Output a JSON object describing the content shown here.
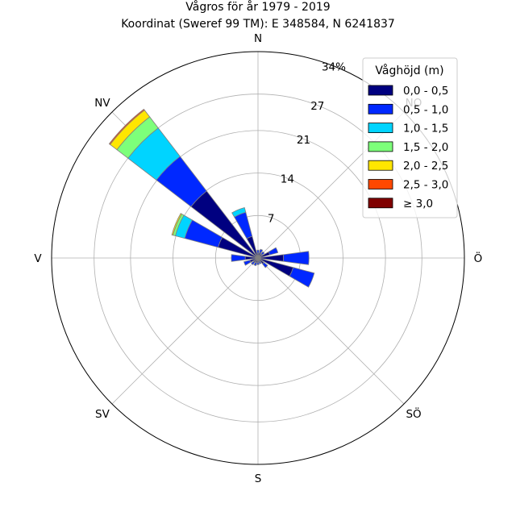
{
  "chart_data": {
    "type": "wind-rose",
    "title": "Vågros för år 1979 - 2019",
    "subtitle": "Koordinat (Sweref 99 TM): E 348584, N 6241837",
    "directions": [
      "N",
      "NO",
      "Ö",
      "SÖ",
      "S",
      "SV",
      "V",
      "NV"
    ],
    "radial_ticks": [
      "7",
      "14",
      "21",
      "27",
      "34%"
    ],
    "radial_tick_values": [
      7,
      14,
      21,
      27,
      34
    ],
    "rmax": 34,
    "grid": true,
    "legend": {
      "title": "Våghöjd (m)",
      "placement": "top-right",
      "items": [
        {
          "label": "0,0 - 0,5",
          "color": "#000080"
        },
        {
          "label": "0,5 - 1,0",
          "color": "#0028ff"
        },
        {
          "label": "1,0 - 1,5",
          "color": "#00d4ff"
        },
        {
          "label": "1,5 - 2,0",
          "color": "#7dff7a"
        },
        {
          "label": "2,0 - 2,5",
          "color": "#ffe600"
        },
        {
          "label": "2,5 - 3,0",
          "color": "#ff4800"
        },
        {
          "label": "≥ 3,0",
          "color": "#800000"
        }
      ]
    },
    "sector_width_deg": 15,
    "sectors": [
      {
        "dir_deg": 0,
        "cum": [
          0.8,
          1.3
        ]
      },
      {
        "dir_deg": 22.5,
        "cum": [
          0.9,
          1.5
        ]
      },
      {
        "dir_deg": 45,
        "cum": [
          0.8,
          1.3
        ]
      },
      {
        "dir_deg": 67.5,
        "cum": [
          2.0,
          3.4
        ]
      },
      {
        "dir_deg": 90,
        "cum": [
          4.2,
          8.4
        ]
      },
      {
        "dir_deg": 112.5,
        "cum": [
          6.0,
          9.6
        ]
      },
      {
        "dir_deg": 135,
        "cum": [
          1.2,
          2.0
        ]
      },
      {
        "dir_deg": 157.5,
        "cum": [
          0.6,
          1.0
        ]
      },
      {
        "dir_deg": 180,
        "cum": [
          0.7,
          1.1
        ]
      },
      {
        "dir_deg": 202.5,
        "cum": [
          0.8,
          1.3
        ]
      },
      {
        "dir_deg": 225,
        "cum": [
          0.9,
          1.4
        ]
      },
      {
        "dir_deg": 247.5,
        "cum": [
          1.4,
          2.4
        ]
      },
      {
        "dir_deg": 270,
        "cum": [
          2.1,
          4.4
        ]
      },
      {
        "dir_deg": 292.5,
        "cum": [
          6.8,
          12.5,
          14.1,
          14.5,
          14.7
        ]
      },
      {
        "dir_deg": 315,
        "cum": [
          13.9,
          21.1,
          27.0,
          29.3,
          30.7,
          30.9
        ]
      },
      {
        "dir_deg": 337.5,
        "cum": [
          3.7,
          7.8,
          8.6
        ]
      }
    ]
  }
}
